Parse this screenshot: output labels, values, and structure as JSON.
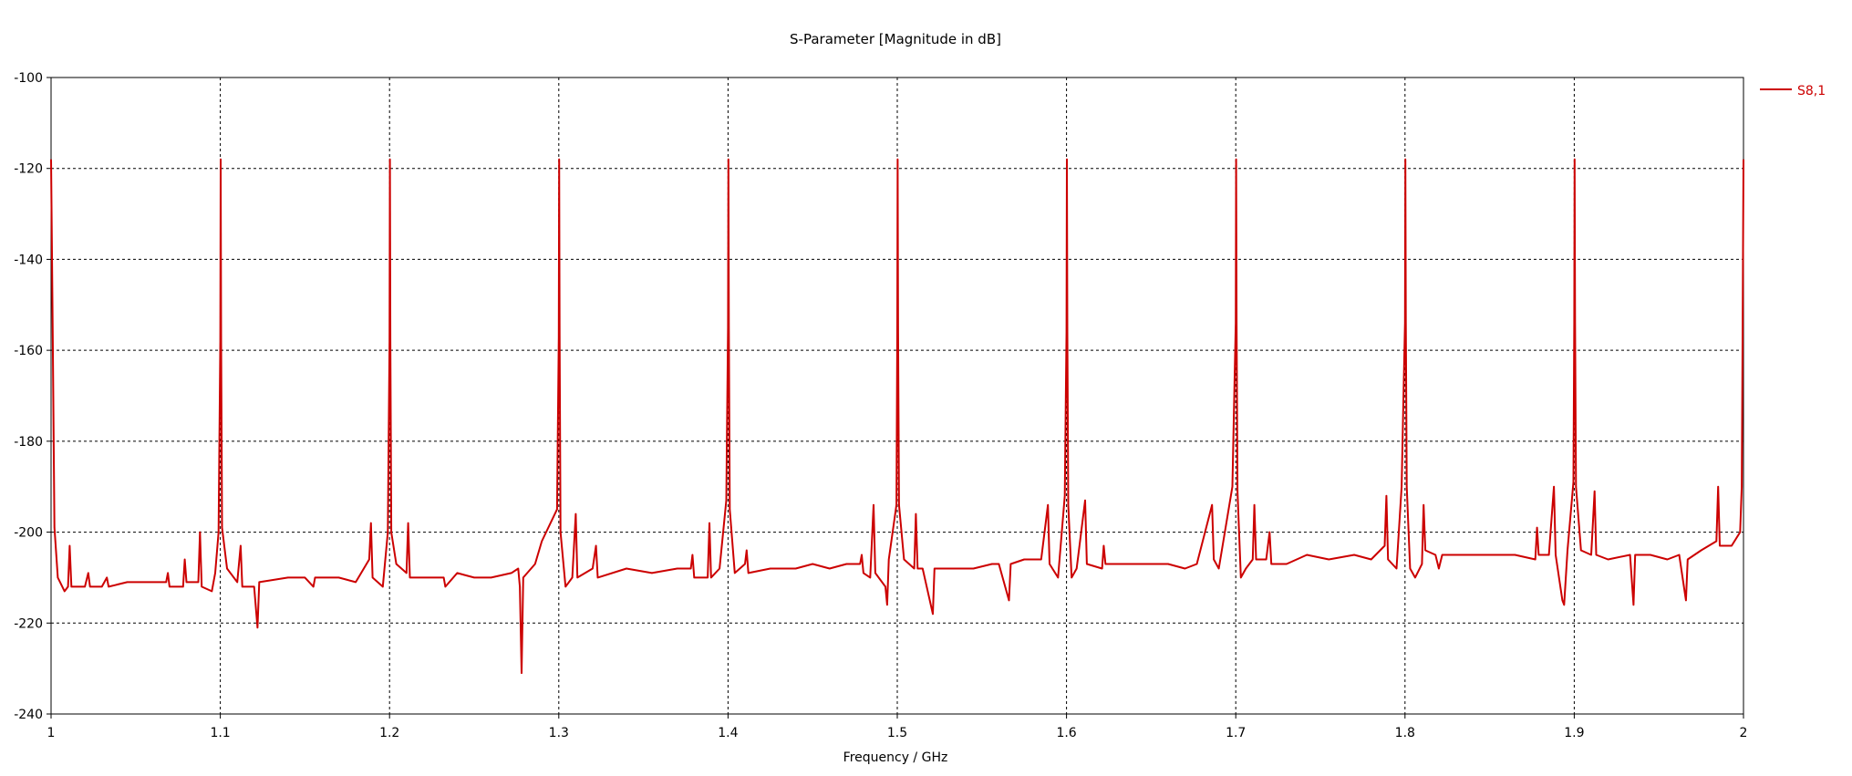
{
  "chart_data": {
    "type": "line",
    "title": "S-Parameter [Magnitude in dB]",
    "xlabel": "Frequency / GHz",
    "ylabel": "",
    "xlim": [
      1,
      2
    ],
    "ylim": [
      -240,
      -100
    ],
    "x_ticks": [
      "1",
      "1.1",
      "1.2",
      "1.3",
      "1.4",
      "1.5",
      "1.6",
      "1.7",
      "1.8",
      "1.9",
      "2"
    ],
    "y_ticks": [
      "-100",
      "-120",
      "-140",
      "-160",
      "-180",
      "-200",
      "-220",
      "-240"
    ],
    "grid": true,
    "legend_position": "top-right",
    "series": [
      {
        "name": "S8,1",
        "color": "#cc0000",
        "points": [
          [
            1.0,
            -118
          ],
          [
            1.001,
            -158
          ],
          [
            1.002,
            -199
          ],
          [
            1.004,
            -210
          ],
          [
            1.008,
            -213
          ],
          [
            1.01,
            -212
          ],
          [
            1.011,
            -203
          ],
          [
            1.012,
            -212
          ],
          [
            1.02,
            -212
          ],
          [
            1.022,
            -209
          ],
          [
            1.023,
            -212
          ],
          [
            1.03,
            -212
          ],
          [
            1.033,
            -210
          ],
          [
            1.034,
            -212
          ],
          [
            1.045,
            -211
          ],
          [
            1.06,
            -211
          ],
          [
            1.068,
            -211
          ],
          [
            1.069,
            -209
          ],
          [
            1.07,
            -212
          ],
          [
            1.078,
            -212
          ],
          [
            1.079,
            -206
          ],
          [
            1.08,
            -211
          ],
          [
            1.087,
            -211
          ],
          [
            1.088,
            -200
          ],
          [
            1.089,
            -212
          ],
          [
            1.095,
            -213
          ],
          [
            1.097,
            -209
          ],
          [
            1.099,
            -200
          ],
          [
            1.1,
            -158
          ],
          [
            1.1002,
            -118
          ],
          [
            1.1005,
            -158
          ],
          [
            1.101,
            -199
          ],
          [
            1.104,
            -208
          ],
          [
            1.11,
            -211
          ],
          [
            1.112,
            -203
          ],
          [
            1.113,
            -212
          ],
          [
            1.12,
            -212
          ],
          [
            1.122,
            -221
          ],
          [
            1.123,
            -211
          ],
          [
            1.14,
            -210
          ],
          [
            1.15,
            -210
          ],
          [
            1.155,
            -212
          ],
          [
            1.156,
            -210
          ],
          [
            1.17,
            -210
          ],
          [
            1.18,
            -211
          ],
          [
            1.188,
            -206
          ],
          [
            1.189,
            -198
          ],
          [
            1.19,
            -210
          ],
          [
            1.196,
            -212
          ],
          [
            1.199,
            -200
          ],
          [
            1.2,
            -158
          ],
          [
            1.2002,
            -118
          ],
          [
            1.2005,
            -158
          ],
          [
            1.201,
            -200
          ],
          [
            1.204,
            -207
          ],
          [
            1.21,
            -209
          ],
          [
            1.211,
            -198
          ],
          [
            1.212,
            -210
          ],
          [
            1.225,
            -210
          ],
          [
            1.232,
            -210
          ],
          [
            1.233,
            -212
          ],
          [
            1.24,
            -209
          ],
          [
            1.25,
            -210
          ],
          [
            1.26,
            -210
          ],
          [
            1.272,
            -209
          ],
          [
            1.276,
            -208
          ],
          [
            1.277,
            -212
          ],
          [
            1.278,
            -231
          ],
          [
            1.279,
            -210
          ],
          [
            1.286,
            -207
          ],
          [
            1.29,
            -202
          ],
          [
            1.299,
            -195
          ],
          [
            1.3,
            -157
          ],
          [
            1.3002,
            -118
          ],
          [
            1.3005,
            -157
          ],
          [
            1.301,
            -200
          ],
          [
            1.304,
            -212
          ],
          [
            1.308,
            -210
          ],
          [
            1.31,
            -196
          ],
          [
            1.311,
            -210
          ],
          [
            1.32,
            -208
          ],
          [
            1.322,
            -203
          ],
          [
            1.323,
            -210
          ],
          [
            1.34,
            -208
          ],
          [
            1.355,
            -209
          ],
          [
            1.37,
            -208
          ],
          [
            1.378,
            -208
          ],
          [
            1.379,
            -205
          ],
          [
            1.38,
            -210
          ],
          [
            1.388,
            -210
          ],
          [
            1.389,
            -198
          ],
          [
            1.39,
            -210
          ],
          [
            1.395,
            -208
          ],
          [
            1.399,
            -193
          ],
          [
            1.4,
            -155
          ],
          [
            1.4002,
            -118
          ],
          [
            1.4005,
            -155
          ],
          [
            1.401,
            -195
          ],
          [
            1.404,
            -209
          ],
          [
            1.41,
            -207
          ],
          [
            1.411,
            -204
          ],
          [
            1.412,
            -209
          ],
          [
            1.425,
            -208
          ],
          [
            1.44,
            -208
          ],
          [
            1.45,
            -207
          ],
          [
            1.46,
            -208
          ],
          [
            1.47,
            -207
          ],
          [
            1.478,
            -207
          ],
          [
            1.479,
            -205
          ],
          [
            1.48,
            -209
          ],
          [
            1.484,
            -210
          ],
          [
            1.486,
            -194
          ],
          [
            1.487,
            -209
          ],
          [
            1.493,
            -212
          ],
          [
            1.494,
            -216
          ],
          [
            1.495,
            -206
          ],
          [
            1.498,
            -198
          ],
          [
            1.4995,
            -194
          ],
          [
            1.5,
            -156
          ],
          [
            1.5002,
            -118
          ],
          [
            1.5005,
            -156
          ],
          [
            1.501,
            -194
          ],
          [
            1.504,
            -206
          ],
          [
            1.51,
            -208
          ],
          [
            1.511,
            -196
          ],
          [
            1.512,
            -208
          ],
          [
            1.515,
            -208
          ],
          [
            1.521,
            -218
          ],
          [
            1.522,
            -208
          ],
          [
            1.53,
            -208
          ],
          [
            1.545,
            -208
          ],
          [
            1.556,
            -207
          ],
          [
            1.56,
            -207
          ],
          [
            1.566,
            -215
          ],
          [
            1.567,
            -207
          ],
          [
            1.575,
            -206
          ],
          [
            1.585,
            -206
          ],
          [
            1.589,
            -194
          ],
          [
            1.59,
            -207
          ],
          [
            1.595,
            -210
          ],
          [
            1.599,
            -192
          ],
          [
            1.6,
            -156
          ],
          [
            1.6002,
            -118
          ],
          [
            1.6005,
            -156
          ],
          [
            1.601,
            -194
          ],
          [
            1.603,
            -210
          ],
          [
            1.606,
            -208
          ],
          [
            1.611,
            -193
          ],
          [
            1.612,
            -207
          ],
          [
            1.621,
            -208
          ],
          [
            1.622,
            -203
          ],
          [
            1.623,
            -207
          ],
          [
            1.63,
            -207
          ],
          [
            1.645,
            -207
          ],
          [
            1.66,
            -207
          ],
          [
            1.67,
            -208
          ],
          [
            1.677,
            -207
          ],
          [
            1.686,
            -194
          ],
          [
            1.687,
            -206
          ],
          [
            1.69,
            -208
          ],
          [
            1.698,
            -190
          ],
          [
            1.7,
            -154
          ],
          [
            1.7002,
            -118
          ],
          [
            1.7005,
            -154
          ],
          [
            1.701,
            -191
          ],
          [
            1.703,
            -210
          ],
          [
            1.706,
            -208
          ],
          [
            1.71,
            -206
          ],
          [
            1.711,
            -194
          ],
          [
            1.712,
            -206
          ],
          [
            1.718,
            -206
          ],
          [
            1.72,
            -200
          ],
          [
            1.721,
            -207
          ],
          [
            1.73,
            -207
          ],
          [
            1.742,
            -205
          ],
          [
            1.755,
            -206
          ],
          [
            1.77,
            -205
          ],
          [
            1.78,
            -206
          ],
          [
            1.788,
            -203
          ],
          [
            1.789,
            -192
          ],
          [
            1.79,
            -206
          ],
          [
            1.795,
            -208
          ],
          [
            1.798,
            -190
          ],
          [
            1.8,
            -154
          ],
          [
            1.8002,
            -118
          ],
          [
            1.8005,
            -154
          ],
          [
            1.801,
            -190
          ],
          [
            1.803,
            -208
          ],
          [
            1.806,
            -210
          ],
          [
            1.81,
            -207
          ],
          [
            1.811,
            -194
          ],
          [
            1.812,
            -204
          ],
          [
            1.818,
            -205
          ],
          [
            1.82,
            -208
          ],
          [
            1.822,
            -205
          ],
          [
            1.83,
            -205
          ],
          [
            1.85,
            -205
          ],
          [
            1.865,
            -205
          ],
          [
            1.877,
            -206
          ],
          [
            1.878,
            -199
          ],
          [
            1.879,
            -205
          ],
          [
            1.885,
            -205
          ],
          [
            1.888,
            -190
          ],
          [
            1.889,
            -205
          ],
          [
            1.893,
            -215
          ],
          [
            1.894,
            -216
          ],
          [
            1.896,
            -204
          ],
          [
            1.8995,
            -189
          ],
          [
            1.9,
            -154
          ],
          [
            1.9002,
            -118
          ],
          [
            1.9005,
            -154
          ],
          [
            1.901,
            -190
          ],
          [
            1.904,
            -204
          ],
          [
            1.91,
            -205
          ],
          [
            1.912,
            -191
          ],
          [
            1.913,
            -205
          ],
          [
            1.92,
            -206
          ],
          [
            1.933,
            -205
          ],
          [
            1.935,
            -216
          ],
          [
            1.936,
            -205
          ],
          [
            1.945,
            -205
          ],
          [
            1.955,
            -206
          ],
          [
            1.962,
            -205
          ],
          [
            1.966,
            -215
          ],
          [
            1.967,
            -206
          ],
          [
            1.975,
            -204
          ],
          [
            1.984,
            -202
          ],
          [
            1.985,
            -190
          ],
          [
            1.986,
            -203
          ],
          [
            1.993,
            -203
          ],
          [
            1.998,
            -200
          ],
          [
            1.999,
            -190
          ],
          [
            1.9995,
            -154
          ],
          [
            2.0,
            -118
          ]
        ]
      }
    ]
  }
}
